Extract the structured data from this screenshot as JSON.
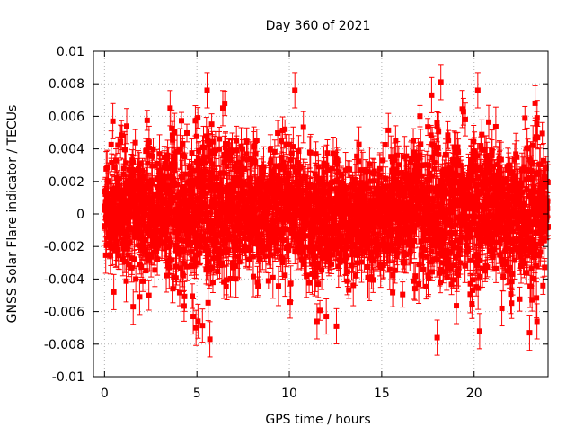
{
  "chart_data": {
    "type": "scatter",
    "title": "Day 360 of 2021",
    "xlabel": "GPS time / hours",
    "ylabel": "GNSS Solar Flare indicator / TECUs",
    "xlim": [
      -0.6,
      24.0
    ],
    "ylim": [
      -0.01,
      0.01
    ],
    "xticks": [
      0,
      5,
      10,
      15,
      20
    ],
    "xtick_labels": [
      "0",
      "5",
      "10",
      "15",
      "20"
    ],
    "yticks": [
      -0.01,
      -0.008,
      -0.006,
      -0.004,
      -0.002,
      0,
      0.002,
      0.004,
      0.006,
      0.008,
      0.01
    ],
    "ytick_labels": [
      "-0.01",
      "-0.008",
      "-0.006",
      "-0.004",
      "-0.002",
      "0",
      "0.002",
      "0.004",
      "0.006",
      "0.008",
      "0.01"
    ],
    "grid": true,
    "legend": "none",
    "series_color": "#ff0000",
    "marker": "filled-square",
    "error_bars": true,
    "x_range": [
      0,
      24.0
    ],
    "sample_interval_hours": 0.00833,
    "typical_error": 0.0009,
    "envelope": [
      {
        "x": 0.0,
        "y_low": -0.0036,
        "y_high": 0.0038
      },
      {
        "x": 1.0,
        "y_low": -0.0057,
        "y_high": 0.0058
      },
      {
        "x": 2.0,
        "y_low": -0.0055,
        "y_high": 0.0056
      },
      {
        "x": 3.0,
        "y_low": -0.0058,
        "y_high": 0.0064
      },
      {
        "x": 4.0,
        "y_low": -0.006,
        "y_high": 0.0066
      },
      {
        "x": 5.0,
        "y_low": -0.0068,
        "y_high": 0.007
      },
      {
        "x": 6.0,
        "y_low": -0.007,
        "y_high": 0.0074
      },
      {
        "x": 7.0,
        "y_low": -0.0062,
        "y_high": 0.0062
      },
      {
        "x": 8.0,
        "y_low": -0.0052,
        "y_high": 0.0058
      },
      {
        "x": 9.0,
        "y_low": -0.005,
        "y_high": 0.0052
      },
      {
        "x": 10.0,
        "y_low": -0.0054,
        "y_high": 0.0068
      },
      {
        "x": 11.0,
        "y_low": -0.0058,
        "y_high": 0.006
      },
      {
        "x": 12.0,
        "y_low": -0.006,
        "y_high": 0.0056
      },
      {
        "x": 13.0,
        "y_low": -0.0054,
        "y_high": 0.0052
      },
      {
        "x": 14.0,
        "y_low": -0.005,
        "y_high": 0.0048
      },
      {
        "x": 15.0,
        "y_low": -0.0046,
        "y_high": 0.005
      },
      {
        "x": 16.0,
        "y_low": -0.005,
        "y_high": 0.0054
      },
      {
        "x": 17.0,
        "y_low": -0.0058,
        "y_high": 0.0064
      },
      {
        "x": 18.0,
        "y_low": -0.0072,
        "y_high": 0.0078
      },
      {
        "x": 19.0,
        "y_low": -0.0066,
        "y_high": 0.0068
      },
      {
        "x": 20.0,
        "y_low": -0.0068,
        "y_high": 0.0074
      },
      {
        "x": 21.0,
        "y_low": -0.0062,
        "y_high": 0.0066
      },
      {
        "x": 22.0,
        "y_low": -0.0064,
        "y_high": 0.0064
      },
      {
        "x": 23.0,
        "y_low": -0.007,
        "y_high": 0.0068
      },
      {
        "x": 24.0,
        "y_low": -0.0044,
        "y_high": 0.0046
      }
    ],
    "outliers": [
      {
        "x": 0.45,
        "y": 0.0057
      },
      {
        "x": 0.5,
        "y": -0.0048
      },
      {
        "x": 1.2,
        "y": 0.0054
      },
      {
        "x": 1.55,
        "y": -0.0057
      },
      {
        "x": 3.55,
        "y": 0.0065
      },
      {
        "x": 4.8,
        "y": -0.0063
      },
      {
        "x": 4.95,
        "y": -0.007
      },
      {
        "x": 5.55,
        "y": 0.0076
      },
      {
        "x": 5.7,
        "y": -0.0077
      },
      {
        "x": 6.4,
        "y": 0.0065
      },
      {
        "x": 10.3,
        "y": 0.0076
      },
      {
        "x": 11.5,
        "y": -0.0066
      },
      {
        "x": 12.0,
        "y": -0.0063
      },
      {
        "x": 12.55,
        "y": -0.0069
      },
      {
        "x": 17.7,
        "y": 0.0073
      },
      {
        "x": 18.0,
        "y": -0.0076
      },
      {
        "x": 18.2,
        "y": 0.0081
      },
      {
        "x": 20.2,
        "y": 0.0076
      },
      {
        "x": 20.3,
        "y": -0.0072
      },
      {
        "x": 23.0,
        "y": -0.0073
      },
      {
        "x": 23.3,
        "y": 0.0068
      },
      {
        "x": 23.4,
        "y": -0.0066
      },
      {
        "x": 1.9,
        "y": -0.0051
      },
      {
        "x": 21.5,
        "y": -0.0058
      }
    ]
  }
}
